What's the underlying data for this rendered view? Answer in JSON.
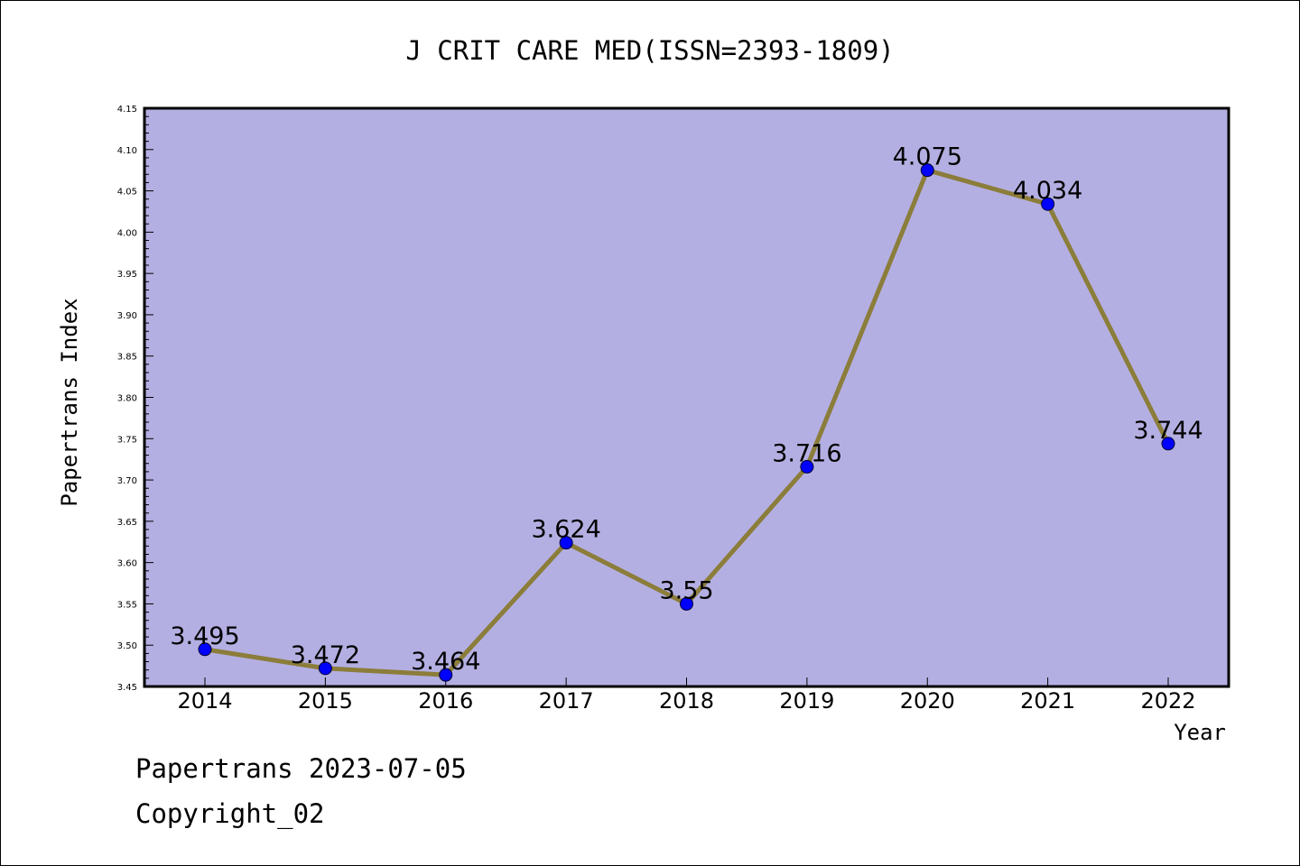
{
  "chart_data": {
    "type": "line",
    "title": "J CRIT CARE MED(ISSN=2393-1809)",
    "xlabel": "Year",
    "ylabel": "Papertrans Index",
    "categories": [
      "2014",
      "2015",
      "2016",
      "2017",
      "2018",
      "2019",
      "2020",
      "2021",
      "2022"
    ],
    "series": [
      {
        "values": [
          3.495,
          3.472,
          3.464,
          3.624,
          3.55,
          3.716,
          4.075,
          4.034,
          3.744
        ]
      }
    ],
    "data_labels": [
      "3.495",
      "3.472",
      "3.464",
      "3.624",
      "3.55",
      "3.716",
      "4.075",
      "4.034",
      "3.744"
    ],
    "ylim": [
      3.45,
      4.15
    ],
    "yticks": [
      "3.45",
      "3.50",
      "3.55",
      "3.60",
      "3.65",
      "3.70",
      "3.75",
      "3.80",
      "3.85",
      "3.90",
      "3.95",
      "4.00",
      "4.05",
      "4.10",
      "4.15"
    ],
    "grid": false,
    "legend": "none",
    "colors": {
      "plot_background": "#b4afe2",
      "line": "#8b7d3a",
      "marker": "#0000ff"
    }
  },
  "footer": {
    "date_line": "Papertrans 2023-07-05",
    "copyright_line": "Copyright_02"
  }
}
